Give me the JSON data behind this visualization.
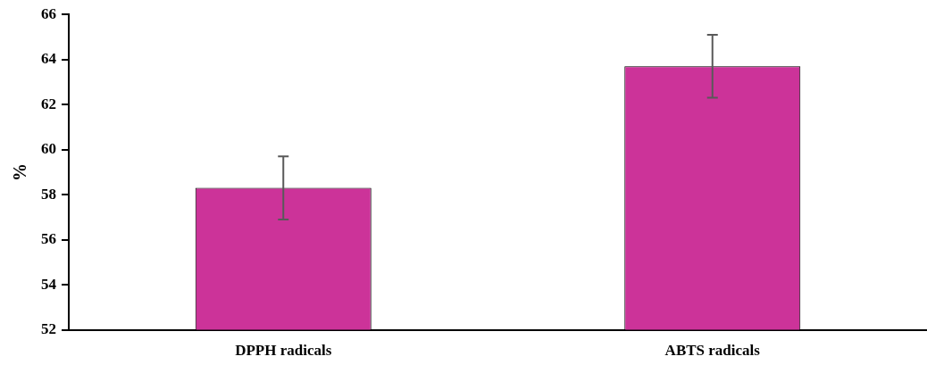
{
  "chart_data": {
    "type": "bar",
    "ylabel": "%",
    "categories": [
      "DPPH radicals",
      "ABTS radicals"
    ],
    "values": [
      58.3,
      63.7
    ],
    "errors": [
      1.4,
      1.4
    ],
    "color": "#cc3399",
    "ylim": [
      52,
      66
    ],
    "yticks": [
      52,
      54,
      56,
      58,
      60,
      62,
      64,
      66
    ],
    "grid": false,
    "legend": false
  }
}
